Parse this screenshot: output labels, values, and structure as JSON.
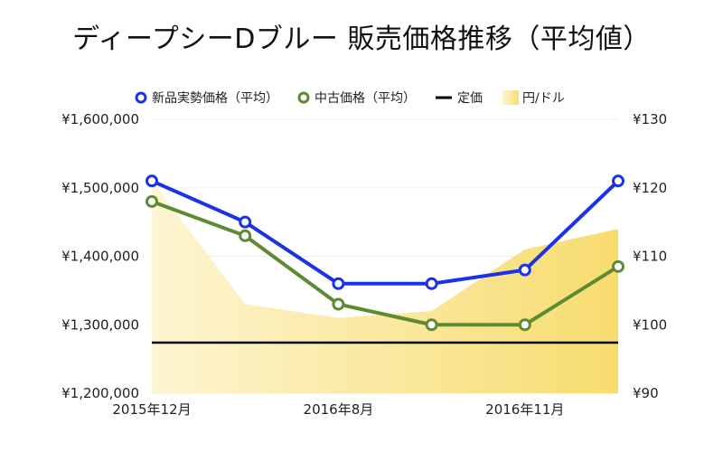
{
  "chart_data": {
    "type": "line",
    "title": "ディープシーDブルー 販売価格推移（平均値）",
    "categories": [
      "2015年12月",
      "",
      "2016年8月",
      "",
      "2016年11月",
      ""
    ],
    "x_tick_labels": [
      "2015年12月",
      "2016年8月",
      "2016年11月"
    ],
    "series": [
      {
        "name": "新品実勢価格（平均）",
        "axis": "left",
        "type": "line",
        "color": "#1a33e6",
        "values": [
          1510000,
          1450000,
          1360000,
          1360000,
          1380000,
          1510000
        ]
      },
      {
        "name": "中古価格（平均）",
        "axis": "left",
        "type": "line",
        "color": "#5e8a34",
        "values": [
          1480000,
          1430000,
          1330000,
          1300000,
          1300000,
          1385000
        ]
      },
      {
        "name": "定価",
        "axis": "left",
        "type": "line",
        "color": "#000000",
        "values": [
          1274000,
          1274000,
          1274000,
          1274000,
          1274000,
          1274000
        ]
      },
      {
        "name": "円/ドル",
        "axis": "right",
        "type": "area",
        "color": "#f7dc6f",
        "values": [
          121,
          103,
          101,
          102,
          111,
          114
        ]
      }
    ],
    "y_left": {
      "range": [
        1200000,
        1600000
      ],
      "ticks": [
        1200000,
        1300000,
        1400000,
        1500000,
        1600000
      ],
      "tick_labels": [
        "¥1,200,000",
        "¥1,300,000",
        "¥1,400,000",
        "¥1,500,000",
        "¥1,600,000"
      ]
    },
    "y_right": {
      "range": [
        90,
        130
      ],
      "ticks": [
        90,
        100,
        110,
        120,
        130
      ],
      "tick_labels": [
        "¥90",
        "¥100",
        "¥110",
        "¥120",
        "¥130"
      ]
    },
    "grid": true,
    "legend_position": "top-right"
  }
}
